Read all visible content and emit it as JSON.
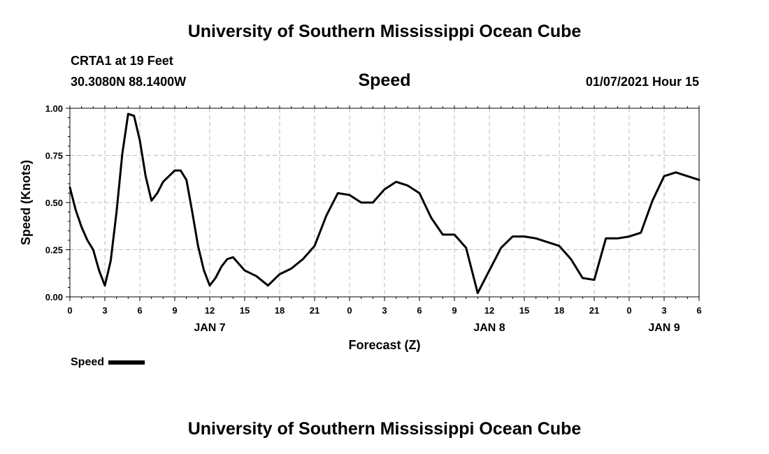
{
  "header": {
    "title": "University of Southern Mississippi Ocean Cube",
    "station": "CRTA1 at 19 Feet",
    "location": "30.3080N 88.1400W",
    "parameter": "Speed",
    "datetime": "01/07/2021 Hour 15"
  },
  "footer": {
    "title": "University of Southern Mississippi Ocean Cube"
  },
  "colors": {
    "line": "#000000",
    "grid": "#bbbbbb",
    "background": "#ffffff"
  },
  "chart_data": {
    "type": "line",
    "xlabel": "Forecast (Z)",
    "ylabel": "Speed (Knots)",
    "xlim": [
      0,
      54
    ],
    "ylim": [
      0.0,
      1.0
    ],
    "grid": true,
    "x_tick_values": [
      0,
      3,
      6,
      9,
      12,
      15,
      18,
      21,
      24,
      27,
      30,
      33,
      36,
      39,
      42,
      45,
      48,
      51,
      54
    ],
    "x_tick_labels": [
      "0",
      "3",
      "6",
      "9",
      "12",
      "15",
      "18",
      "21",
      "0",
      "3",
      "6",
      "9",
      "12",
      "15",
      "18",
      "21",
      "0",
      "3",
      "6"
    ],
    "day_labels": [
      {
        "x": 12,
        "label": "JAN 7"
      },
      {
        "x": 36,
        "label": "JAN 8"
      },
      {
        "x": 51,
        "label": "JAN 9"
      }
    ],
    "y_tick_values": [
      0.0,
      0.25,
      0.5,
      0.75,
      1.0
    ],
    "y_tick_labels": [
      "0.00",
      "0.25",
      "0.50",
      "0.75",
      "1.00"
    ],
    "legend": {
      "placement": "bottom-left",
      "label": "Speed"
    },
    "series": [
      {
        "name": "Speed",
        "x": [
          0,
          0.5,
          1,
          1.5,
          2,
          2.5,
          3,
          3.5,
          4,
          4.5,
          5,
          5.5,
          6,
          6.5,
          7,
          7.5,
          8,
          8.5,
          9,
          9.5,
          10,
          10.5,
          11,
          11.5,
          12,
          12.5,
          13,
          13.5,
          14,
          15,
          16,
          17,
          18,
          19,
          20,
          21,
          22,
          23,
          24,
          25,
          26,
          27,
          28,
          29,
          30,
          31,
          32,
          33,
          34,
          35,
          36,
          37,
          38,
          39,
          40,
          41,
          42,
          43,
          44,
          45,
          46,
          47,
          48,
          49,
          50,
          51,
          52,
          53,
          54
        ],
        "values": [
          0.58,
          0.46,
          0.37,
          0.3,
          0.25,
          0.14,
          0.06,
          0.19,
          0.45,
          0.76,
          0.97,
          0.96,
          0.83,
          0.64,
          0.51,
          0.55,
          0.61,
          0.64,
          0.67,
          0.67,
          0.62,
          0.45,
          0.27,
          0.14,
          0.06,
          0.1,
          0.16,
          0.2,
          0.21,
          0.14,
          0.11,
          0.06,
          0.12,
          0.15,
          0.2,
          0.27,
          0.43,
          0.55,
          0.54,
          0.5,
          0.5,
          0.57,
          0.61,
          0.59,
          0.55,
          0.42,
          0.33,
          0.33,
          0.26,
          0.02,
          0.14,
          0.26,
          0.32,
          0.32,
          0.31,
          0.29,
          0.27,
          0.2,
          0.1,
          0.09,
          0.31,
          0.31,
          0.32,
          0.34,
          0.51,
          0.64,
          0.66,
          0.64,
          0.62
        ]
      }
    ]
  }
}
